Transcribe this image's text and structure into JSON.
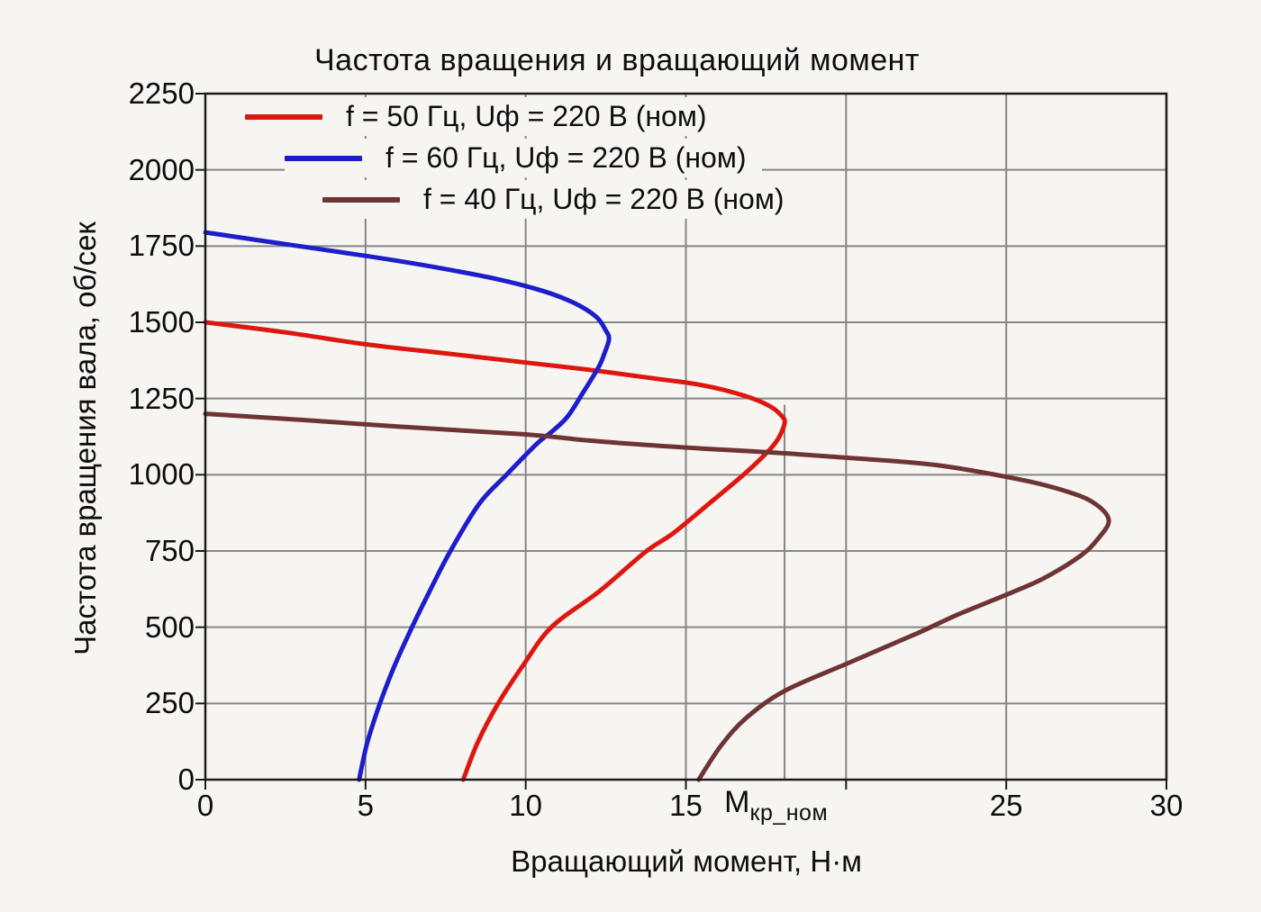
{
  "chart_data": {
    "type": "line",
    "title": "Частота вращения и вращающий момент",
    "xlabel": "Вращающий момент, Н·м",
    "ylabel": "Частота вращения вала, об/сек",
    "xlim": [
      0,
      30
    ],
    "ylim": [
      0,
      2250
    ],
    "grid": true,
    "legend_position": "upper-left-staggered",
    "colors": {
      "background": "#f7f5f1",
      "grid": "#868686",
      "frame": "#1b1b1b",
      "text": "#0e0e0e"
    },
    "xticks": [
      {
        "value": 0,
        "label": "0"
      },
      {
        "value": 5,
        "label": "5"
      },
      {
        "value": 10,
        "label": "10"
      },
      {
        "value": 15,
        "label": "15"
      },
      {
        "value": 20,
        "label": ""
      },
      {
        "value": 25,
        "label": "25"
      },
      {
        "value": 30,
        "label": "30"
      }
    ],
    "yticks": [
      {
        "value": 0,
        "label": "0"
      },
      {
        "value": 250,
        "label": "250"
      },
      {
        "value": 500,
        "label": "500"
      },
      {
        "value": 750,
        "label": "750"
      },
      {
        "value": 1000,
        "label": "1000"
      },
      {
        "value": 1250,
        "label": "1250"
      },
      {
        "value": 1500,
        "label": "1500"
      },
      {
        "value": 1750,
        "label": "1750"
      },
      {
        "value": 2000,
        "label": "2000"
      },
      {
        "value": 2250,
        "label": "2250"
      }
    ],
    "annotation": {
      "main": "М",
      "sub": "кр_ном",
      "x": 16.2,
      "marker_line": {
        "x": 18.08,
        "y_from": 0,
        "y_to": 1230
      }
    },
    "series": [
      {
        "name": "f = 50 Гц, Uф = 220 В (ном)",
        "color": "#dd1710",
        "points": [
          [
            0,
            1500
          ],
          [
            2.5,
            1467
          ],
          [
            5,
            1428
          ],
          [
            7.5,
            1398
          ],
          [
            10,
            1368
          ],
          [
            12,
            1344
          ],
          [
            14,
            1316
          ],
          [
            15.5,
            1294
          ],
          [
            16.8,
            1260
          ],
          [
            17.6,
            1226
          ],
          [
            18.0,
            1192
          ],
          [
            18.08,
            1168
          ],
          [
            17.88,
            1118
          ],
          [
            17.55,
            1075
          ],
          [
            16.8,
            1000
          ],
          [
            15.8,
            912
          ],
          [
            14.6,
            808
          ],
          [
            13.75,
            748
          ],
          [
            12.3,
            618
          ],
          [
            10.8,
            500
          ],
          [
            9.9,
            372
          ],
          [
            9.14,
            250
          ],
          [
            8.5,
            122
          ],
          [
            8.05,
            0
          ]
        ]
      },
      {
        "name": "f = 60 Гц, Uф = 220 В (ном)",
        "color": "#1d1dcb",
        "points": [
          [
            0,
            1795
          ],
          [
            2,
            1764
          ],
          [
            5,
            1718
          ],
          [
            7,
            1684
          ],
          [
            9,
            1644
          ],
          [
            10.5,
            1604
          ],
          [
            11.5,
            1564
          ],
          [
            12.2,
            1518
          ],
          [
            12.5,
            1473
          ],
          [
            12.6,
            1445
          ],
          [
            12.45,
            1396
          ],
          [
            12.28,
            1354
          ],
          [
            11.78,
            1268
          ],
          [
            11.3,
            1190
          ],
          [
            10.8,
            1140
          ],
          [
            10.35,
            1102
          ],
          [
            9.4,
            1000
          ],
          [
            8.55,
            905
          ],
          [
            7.65,
            750
          ],
          [
            7.0,
            618
          ],
          [
            6.45,
            500
          ],
          [
            5.9,
            372
          ],
          [
            5.45,
            250
          ],
          [
            5.05,
            120
          ],
          [
            4.8,
            0
          ]
        ]
      },
      {
        "name": "f = 40 Гц, Uф = 220 В (ном)",
        "color": "#6e3434",
        "points": [
          [
            0,
            1200
          ],
          [
            3,
            1180
          ],
          [
            6,
            1158
          ],
          [
            9.9,
            1133
          ],
          [
            12,
            1112
          ],
          [
            14,
            1096
          ],
          [
            15.5,
            1086
          ],
          [
            17.7,
            1073
          ],
          [
            20,
            1056
          ],
          [
            22.8,
            1032
          ],
          [
            25.4,
            985
          ],
          [
            26.8,
            948
          ],
          [
            27.7,
            910
          ],
          [
            28.2,
            852
          ],
          [
            27.85,
            788
          ],
          [
            27.3,
            733
          ],
          [
            26.2,
            662
          ],
          [
            25.2,
            615
          ],
          [
            23.5,
            542
          ],
          [
            22.2,
            479
          ],
          [
            20.1,
            384
          ],
          [
            18.1,
            292
          ],
          [
            16.9,
            204
          ],
          [
            16.1,
            112
          ],
          [
            15.4,
            0
          ]
        ]
      }
    ]
  }
}
